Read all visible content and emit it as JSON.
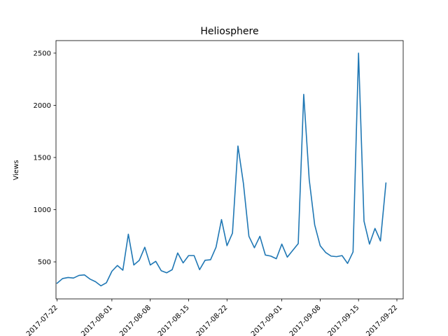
{
  "chart_data": {
    "type": "line",
    "title": "Heliosphere",
    "xlabel": "",
    "ylabel": "Views",
    "x": [
      "2017-07-22",
      "2017-07-23",
      "2017-07-24",
      "2017-07-25",
      "2017-07-26",
      "2017-07-27",
      "2017-07-28",
      "2017-07-29",
      "2017-07-30",
      "2017-07-31",
      "2017-08-01",
      "2017-08-02",
      "2017-08-03",
      "2017-08-04",
      "2017-08-05",
      "2017-08-06",
      "2017-08-07",
      "2017-08-08",
      "2017-08-09",
      "2017-08-10",
      "2017-08-11",
      "2017-08-12",
      "2017-08-13",
      "2017-08-14",
      "2017-08-15",
      "2017-08-16",
      "2017-08-17",
      "2017-08-18",
      "2017-08-19",
      "2017-08-20",
      "2017-08-21",
      "2017-08-22",
      "2017-08-23",
      "2017-08-24",
      "2017-08-25",
      "2017-08-26",
      "2017-08-27",
      "2017-08-28",
      "2017-08-29",
      "2017-08-30",
      "2017-08-31",
      "2017-09-01",
      "2017-09-02",
      "2017-09-03",
      "2017-09-04",
      "2017-09-05",
      "2017-09-06",
      "2017-09-07",
      "2017-09-08",
      "2017-09-09",
      "2017-09-10",
      "2017-09-11",
      "2017-09-12",
      "2017-09-13",
      "2017-09-14",
      "2017-09-15",
      "2017-09-16",
      "2017-09-17",
      "2017-09-18",
      "2017-09-19",
      "2017-09-20"
    ],
    "series": [
      {
        "name": "",
        "color": "#1f77b4",
        "values": [
          295,
          340,
          350,
          345,
          370,
          375,
          335,
          310,
          270,
          300,
          410,
          465,
          420,
          765,
          470,
          515,
          640,
          470,
          505,
          415,
          395,
          425,
          585,
          490,
          560,
          560,
          425,
          515,
          520,
          640,
          905,
          655,
          775,
          1610,
          1250,
          745,
          635,
          745,
          565,
          555,
          530,
          670,
          545,
          610,
          675,
          2105,
          1290,
          855,
          655,
          590,
          555,
          550,
          560,
          485,
          595,
          2500,
          890,
          670,
          820,
          700,
          1255
        ]
      }
    ],
    "xticks": [
      "2017-07-22",
      "2017-08-01",
      "2017-08-08",
      "2017-08-15",
      "2017-08-22",
      "2017-09-01",
      "2017-09-08",
      "2017-09-15",
      "2017-09-22"
    ],
    "yticks": [
      500,
      1000,
      1500,
      2000,
      2500
    ],
    "xlim": [
      "2017-07-22",
      "2017-09-23"
    ],
    "ylim": [
      145,
      2620
    ],
    "grid": false,
    "legend": "none"
  }
}
